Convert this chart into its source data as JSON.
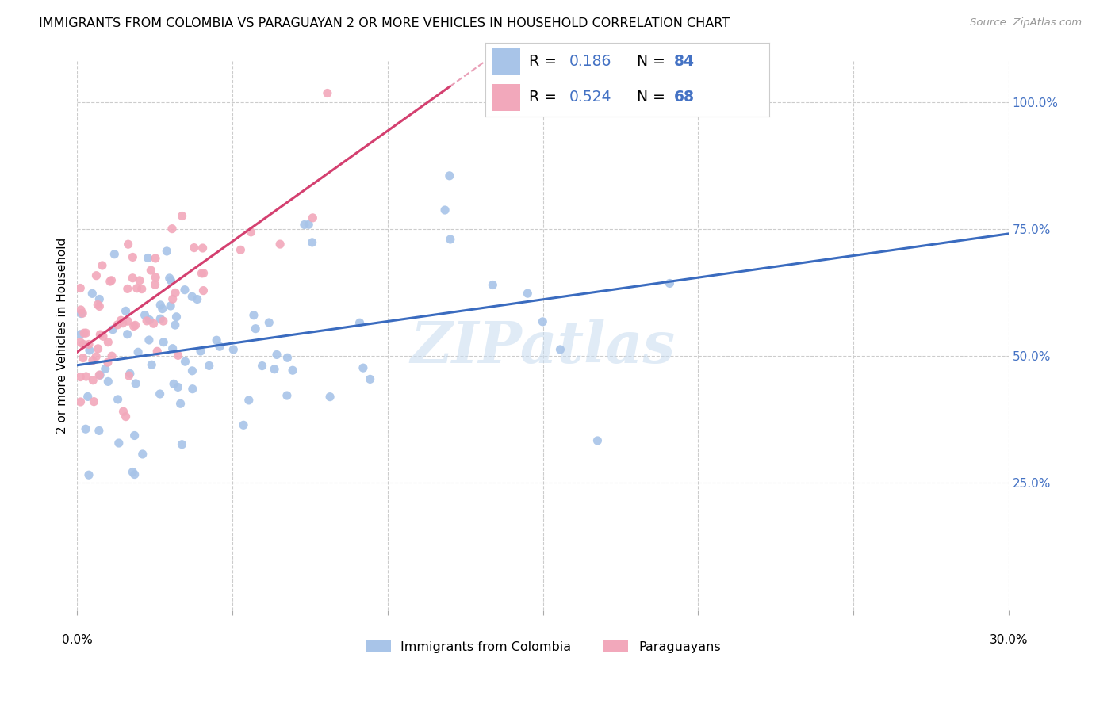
{
  "title": "IMMIGRANTS FROM COLOMBIA VS PARAGUAYAN 2 OR MORE VEHICLES IN HOUSEHOLD CORRELATION CHART",
  "source": "Source: ZipAtlas.com",
  "ylabel": "2 or more Vehicles in Household",
  "ytick_labels": [
    "100.0%",
    "75.0%",
    "50.0%",
    "25.0%"
  ],
  "ytick_vals": [
    1.0,
    0.75,
    0.5,
    0.25
  ],
  "xtick_vals": [
    0.0,
    0.05,
    0.1,
    0.15,
    0.2,
    0.25,
    0.3
  ],
  "xlim": [
    0.0,
    0.3
  ],
  "ylim": [
    0.0,
    1.08
  ],
  "legend_r1": "R = 0.186",
  "legend_n1": "N = 84",
  "legend_r2": "R = 0.524",
  "legend_n2": "N = 68",
  "color_blue_scatter": "#a8c4e8",
  "color_pink_scatter": "#f2a8bb",
  "color_blue_line": "#3a6bbf",
  "color_pink_line": "#d44070",
  "color_blue_text": "#4472c4",
  "color_grid": "#cccccc",
  "watermark_text": "ZIPatlas",
  "scatter_size": 65,
  "col_intercept": 0.495,
  "col_slope": 0.55,
  "col_noise": 0.13,
  "col_xscale": 0.05,
  "par_intercept": 0.505,
  "par_slope": 4.2,
  "par_noise": 0.1,
  "par_xscale": 0.018
}
